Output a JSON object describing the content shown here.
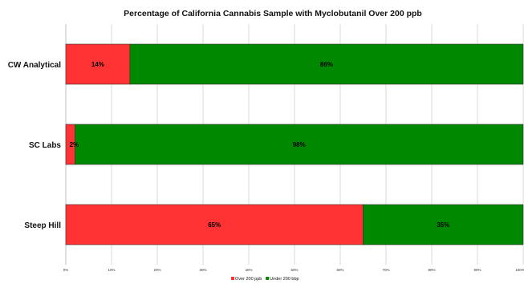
{
  "chart_data": {
    "type": "bar",
    "orientation": "horizontal",
    "stacked": true,
    "title": "Percentage of California Cannabis Sample with Myclobutanil Over 200 ppb",
    "categories": [
      "CW Analytical",
      "SC Labs",
      "Steep Hill"
    ],
    "series": [
      {
        "name": "Over 200 ppb",
        "color": "#ff3333",
        "values": [
          14,
          2,
          65
        ],
        "labels": [
          "14%",
          "2%",
          "65%"
        ]
      },
      {
        "name": "Under 200 bbp",
        "color": "#008800",
        "values": [
          86,
          98,
          35
        ],
        "labels": [
          "86%",
          "98%",
          "35%"
        ]
      }
    ],
    "xlim": [
      0,
      100
    ],
    "xticks": [
      0,
      10,
      20,
      30,
      40,
      50,
      60,
      70,
      80,
      90,
      100
    ],
    "xtick_labels": [
      "0%",
      "10%",
      "20%",
      "30%",
      "40%",
      "50%",
      "60%",
      "70%",
      "80%",
      "90%",
      "100%"
    ],
    "grid": true,
    "legend_position": "bottom"
  }
}
